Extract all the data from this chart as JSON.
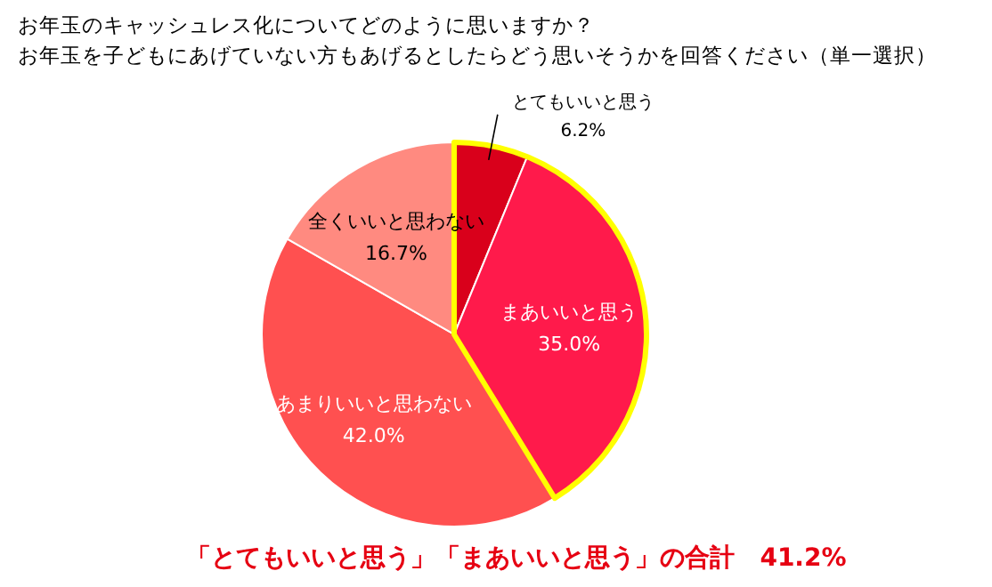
{
  "chart_data": {
    "type": "pie",
    "title": "お年玉のキャッシュレス化についてどのように思いますか？",
    "subtitle": "お年玉を子どもにあげていない方もあげるとしたらどう思いそうかを回答ください（単一選択）",
    "categories": [
      "とてもいいと思う",
      "まあいいと思う",
      "あまりいいと思わない",
      "全くいいと思わない"
    ],
    "values": [
      6.2,
      35.0,
      42.0,
      16.7
    ],
    "value_labels": [
      "6.2%",
      "35.0%",
      "42.0%",
      "16.7%"
    ],
    "colors": [
      "#d9001b",
      "#ff1a4b",
      "#ff5050",
      "#ff8a80"
    ],
    "annotations": [
      "「とてもいいと思う」「まあいいと思う」の合計　41.2%"
    ],
    "legend": false
  }
}
